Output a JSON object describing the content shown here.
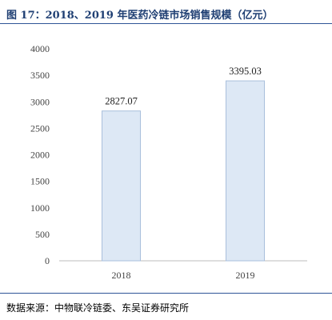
{
  "title": "图 17：2018、2019 年医药冷链市场销售规模（亿元）",
  "source": "数据来源：中物联冷链委、东吴证券研究所",
  "colors": {
    "bar_fill": "#dde8f5",
    "bar_stroke": "#a9bfdc",
    "title": "#1f3f73",
    "rule": "#2f5597"
  },
  "chart_data": {
    "type": "bar",
    "title": "图 17：2018、2019 年医药冷链市场销售规模（亿元）",
    "categories": [
      "2018",
      "2019"
    ],
    "values": [
      2827.07,
      3395.03
    ],
    "data_labels": [
      "2827.07",
      "3395.03"
    ],
    "yticks": [
      0,
      500,
      1000,
      1500,
      2000,
      2500,
      3000,
      3500,
      4000
    ],
    "ylim": [
      0,
      4000
    ],
    "xlabel": "",
    "ylabel": "",
    "grid": false,
    "legend": "none"
  }
}
